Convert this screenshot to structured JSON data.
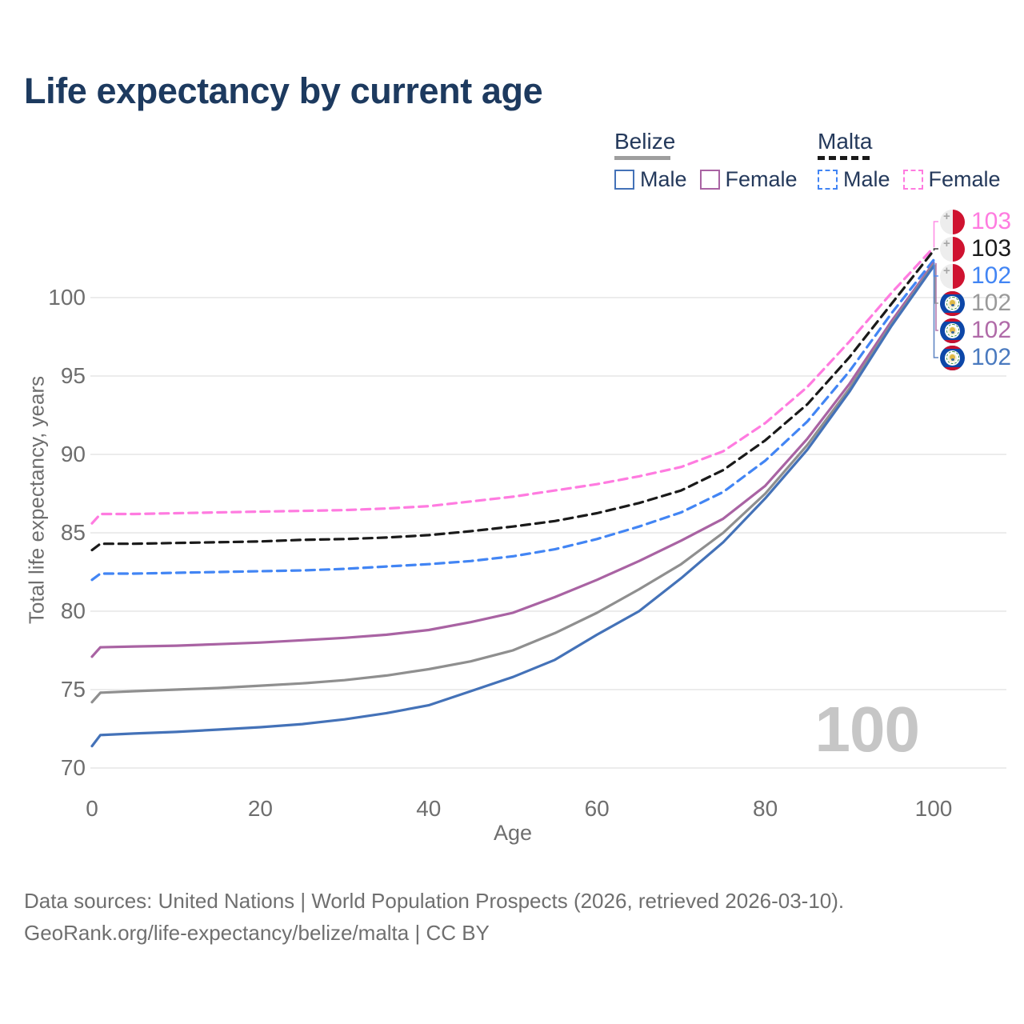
{
  "title": "Life expectancy by current age",
  "legend": {
    "belize": {
      "label": "Belize",
      "male": "Male",
      "female": "Female"
    },
    "malta": {
      "label": "Malta",
      "male": "Male",
      "female": "Female"
    }
  },
  "axes": {
    "y_title": "Total life expectancy, years",
    "x_title": "Age",
    "y_ticks": [
      70,
      75,
      80,
      85,
      90,
      95,
      100
    ],
    "x_ticks": [
      0,
      20,
      40,
      60,
      80,
      100
    ]
  },
  "watermark": "100",
  "end_labels": [
    {
      "flag": "malta",
      "series": "Malta Female",
      "value": "103",
      "color": "#ff7be0"
    },
    {
      "flag": "malta",
      "series": "Malta",
      "value": "103",
      "color": "#1a1a1a"
    },
    {
      "flag": "malta",
      "series": "Malta Male",
      "value": "102",
      "color": "#4285f4"
    },
    {
      "flag": "belize",
      "series": "Belize",
      "value": "102",
      "color": "#9a9a9a"
    },
    {
      "flag": "belize",
      "series": "Belize Female",
      "value": "102",
      "color": "#b06aa8"
    },
    {
      "flag": "belize",
      "series": "Belize Male",
      "value": "102",
      "color": "#4a7abf"
    }
  ],
  "footer": {
    "line1": "Data sources: United Nations | World Population Prospects (2026, retrieved 2026-03-10).",
    "line2": "GeoRank.org/life-expectancy/belize/malta | CC BY"
  },
  "colors": {
    "title_text": "#1d3a5f",
    "legend_text": "#24395b",
    "axis_text": "#6e6e6e",
    "gridline": "#ececec",
    "watermark": "#c6c6c6",
    "belize_underline": "#9e9e9e",
    "malta_underline": "#1a1a1a",
    "malta_flag_red": "#cf1330",
    "belize_flag_blue": "#0d47a8"
  },
  "chart_data": {
    "type": "line",
    "x": [
      0,
      1,
      5,
      10,
      15,
      20,
      25,
      30,
      35,
      40,
      45,
      50,
      55,
      60,
      65,
      70,
      75,
      80,
      85,
      90,
      95,
      100
    ],
    "series": [
      {
        "name": "Malta Female",
        "country": "Malta",
        "sex": "female",
        "color": "#ff7be0",
        "dash": true,
        "values": [
          85.6,
          86.2,
          86.2,
          86.25,
          86.3,
          86.35,
          86.4,
          86.45,
          86.55,
          86.7,
          87.0,
          87.3,
          87.7,
          88.1,
          88.6,
          89.2,
          90.2,
          92.0,
          94.3,
          97.2,
          100.3,
          103.2
        ]
      },
      {
        "name": "Malta",
        "country": "Malta",
        "sex": "both",
        "color": "#1a1a1a",
        "dash": true,
        "values": [
          83.9,
          84.3,
          84.3,
          84.35,
          84.4,
          84.45,
          84.55,
          84.6,
          84.7,
          84.85,
          85.1,
          85.4,
          85.75,
          86.25,
          86.9,
          87.7,
          89.0,
          90.9,
          93.2,
          96.2,
          99.6,
          103.0
        ]
      },
      {
        "name": "Malta Male",
        "country": "Malta",
        "sex": "male",
        "color": "#4285f4",
        "dash": true,
        "values": [
          82.0,
          82.4,
          82.4,
          82.45,
          82.5,
          82.55,
          82.6,
          82.7,
          82.85,
          83.0,
          83.2,
          83.5,
          83.95,
          84.6,
          85.4,
          86.3,
          87.6,
          89.6,
          92.1,
          95.3,
          99.0,
          102.4
        ]
      },
      {
        "name": "Belize Female",
        "country": "Belize",
        "sex": "female",
        "color": "#a963a3",
        "dash": false,
        "values": [
          77.1,
          77.7,
          77.75,
          77.8,
          77.9,
          78.0,
          78.15,
          78.3,
          78.5,
          78.8,
          79.3,
          79.9,
          80.9,
          82.0,
          83.2,
          84.5,
          85.9,
          88.0,
          91.0,
          94.5,
          98.5,
          102.2
        ]
      },
      {
        "name": "Belize",
        "country": "Belize",
        "sex": "both",
        "color": "#8f8f8f",
        "dash": false,
        "values": [
          74.2,
          74.8,
          74.9,
          75.0,
          75.1,
          75.25,
          75.4,
          75.6,
          75.9,
          76.3,
          76.8,
          77.5,
          78.6,
          79.9,
          81.4,
          83.0,
          85.0,
          87.5,
          90.6,
          94.2,
          98.3,
          102.1
        ]
      },
      {
        "name": "Belize Male",
        "country": "Belize",
        "sex": "male",
        "color": "#4472b8",
        "dash": false,
        "values": [
          71.4,
          72.1,
          72.2,
          72.3,
          72.45,
          72.6,
          72.8,
          73.1,
          73.5,
          74.0,
          74.9,
          75.8,
          76.9,
          78.5,
          80.0,
          82.1,
          84.4,
          87.2,
          90.3,
          94.0,
          98.2,
          102.0
        ]
      }
    ],
    "xlabel": "Age",
    "ylabel": "Total life expectancy, years",
    "xlim": [
      0,
      100
    ],
    "ylim": [
      70,
      103.5
    ],
    "grid": "horizontal",
    "legend_position": "top-right"
  }
}
